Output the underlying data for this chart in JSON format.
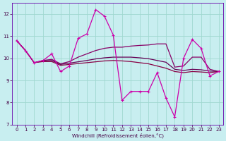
{
  "background_color": "#c8eef0",
  "grid_color": "#a0d8d0",
  "xlabel": "Windchill (Refroidissement éolien,°C)",
  "xlim": [
    -0.5,
    23.5
  ],
  "ylim": [
    7,
    12.5
  ],
  "yticks": [
    7,
    8,
    9,
    10,
    11,
    12
  ],
  "xticks": [
    0,
    1,
    2,
    3,
    4,
    5,
    6,
    7,
    8,
    9,
    10,
    11,
    12,
    13,
    14,
    15,
    16,
    17,
    18,
    19,
    20,
    21,
    22,
    23
  ],
  "series": [
    {
      "x": [
        0,
        1,
        2,
        3,
        4,
        5,
        6,
        7,
        8,
        9,
        10,
        11,
        12,
        13,
        14,
        15,
        16,
        17,
        18,
        19,
        20,
        21,
        22,
        23
      ],
      "y": [
        10.8,
        10.35,
        9.8,
        9.9,
        10.2,
        9.4,
        9.65,
        10.9,
        11.1,
        12.2,
        11.9,
        11.05,
        8.1,
        8.5,
        8.5,
        8.5,
        9.35,
        8.2,
        7.35,
        10.0,
        10.85,
        10.45,
        9.2,
        9.4
      ],
      "color": "#cc00aa",
      "lw": 0.9,
      "marker": true
    },
    {
      "x": [
        0,
        1,
        2,
        3,
        4,
        5,
        6,
        7,
        8,
        9,
        10,
        11,
        12,
        13,
        14,
        15,
        16,
        17,
        18,
        19,
        20,
        21,
        22,
        23
      ],
      "y": [
        10.8,
        10.35,
        9.8,
        9.9,
        9.95,
        9.75,
        9.85,
        10.05,
        10.2,
        10.35,
        10.45,
        10.5,
        10.5,
        10.55,
        10.58,
        10.6,
        10.65,
        10.65,
        9.6,
        9.65,
        10.05,
        10.05,
        9.5,
        9.4
      ],
      "color": "#880066",
      "lw": 0.9,
      "marker": false
    },
    {
      "x": [
        0,
        1,
        2,
        3,
        4,
        5,
        6,
        7,
        8,
        9,
        10,
        11,
        12,
        13,
        14,
        15,
        16,
        17,
        18,
        19,
        20,
        21,
        22,
        23
      ],
      "y": [
        10.8,
        10.35,
        9.8,
        9.88,
        9.9,
        9.72,
        9.78,
        9.84,
        9.9,
        9.97,
        10.02,
        10.05,
        10.05,
        10.05,
        10.02,
        9.98,
        9.9,
        9.82,
        9.5,
        9.45,
        9.5,
        9.48,
        9.42,
        9.4
      ],
      "color": "#660055",
      "lw": 0.9,
      "marker": false
    },
    {
      "x": [
        0,
        1,
        2,
        3,
        4,
        5,
        6,
        7,
        8,
        9,
        10,
        11,
        12,
        13,
        14,
        15,
        16,
        17,
        18,
        19,
        20,
        21,
        22,
        23
      ],
      "y": [
        10.8,
        10.35,
        9.8,
        9.85,
        9.85,
        9.68,
        9.72,
        9.76,
        9.8,
        9.84,
        9.88,
        9.9,
        9.88,
        9.85,
        9.8,
        9.75,
        9.65,
        9.55,
        9.4,
        9.35,
        9.4,
        9.38,
        9.35,
        9.4
      ],
      "color": "#880044",
      "lw": 0.9,
      "marker": false
    }
  ]
}
